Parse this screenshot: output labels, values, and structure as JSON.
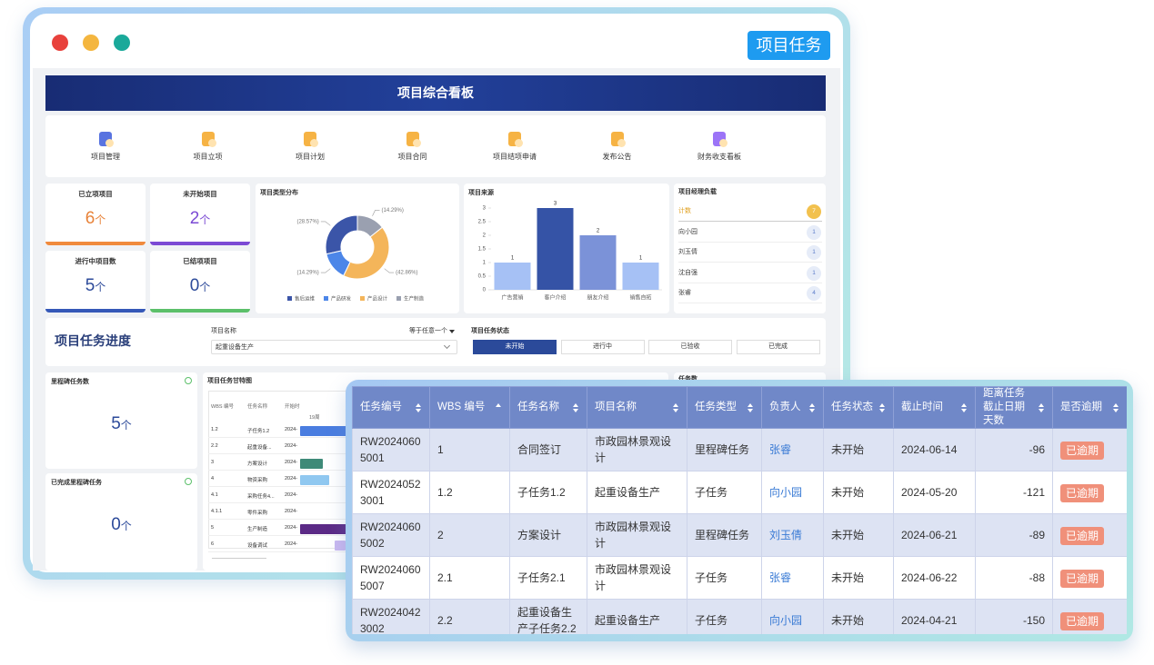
{
  "window": {
    "badge": "项目任务"
  },
  "dashboard": {
    "title": "项目综合看板",
    "nav": [
      "项目管理",
      "项目立项",
      "项目计划",
      "项目合同",
      "项目结项申请",
      "发布公告",
      "财务收支看板"
    ],
    "stats": [
      {
        "label": "已立项项目",
        "value": 6,
        "unit": "个"
      },
      {
        "label": "未开始项目",
        "value": 2,
        "unit": "个"
      },
      {
        "label": "进行中项目数",
        "value": 5,
        "unit": "个"
      },
      {
        "label": "已结项项目",
        "value": 0,
        "unit": "个"
      }
    ],
    "managers": {
      "title": "项目经理负载",
      "rows": [
        {
          "name": "计数",
          "count": 7
        },
        {
          "name": "向小园",
          "count": 1
        },
        {
          "name": "刘玉倩",
          "count": 1
        },
        {
          "name": "沈自强",
          "count": 1
        },
        {
          "name": "张睿",
          "count": 4
        }
      ]
    },
    "filter": {
      "title": "项目任务进度",
      "field_label": "项目名称",
      "operator": "等于任意一个",
      "field_value": "起重设备生产",
      "status_label": "项目任务状态",
      "status_options": [
        "未开始",
        "进行中",
        "已验收",
        "已完成"
      ]
    },
    "milestones": [
      {
        "label": "里程碑任务数",
        "value": 5,
        "unit": "个"
      },
      {
        "label": "已完成里程碑任务",
        "value": 0,
        "unit": "个"
      }
    ],
    "gantt": {
      "title": "项目任务甘特图",
      "columns": [
        "WBS 编号",
        "任务名称",
        "开始时"
      ],
      "week": "19周",
      "rows": [
        [
          "1.2",
          "子任务1.2",
          "2024-"
        ],
        [
          "2.2",
          "起重设备...",
          "2024-"
        ],
        [
          "3",
          "方案设计",
          "2024-"
        ],
        [
          "4",
          "物资采购",
          "2024-"
        ],
        [
          "4.1",
          "采购任务4...",
          "2024-"
        ],
        [
          "4.1.1",
          "零件采购",
          "2024-"
        ],
        [
          "5",
          "生产制造",
          "2024-"
        ],
        [
          "6",
          "设备调试",
          "2024-"
        ]
      ]
    },
    "task_count_title": "任务数"
  },
  "chart_data": [
    {
      "type": "pie",
      "title": "项目类型分布",
      "categories": [
        "售后运维",
        "产品研发",
        "产品设计",
        "生产制造"
      ],
      "values": [
        28.57,
        14.29,
        42.86,
        14.29
      ],
      "value_labels": [
        "(28.57%)",
        "(14.29%)",
        "(42.86%)",
        "(14.29%)"
      ],
      "colors": [
        "#3b55a8",
        "#4c86e8",
        "#f4b55a",
        "#9aa0b0"
      ]
    },
    {
      "type": "bar",
      "title": "项目来源",
      "categories": [
        "广告营销",
        "客户介绍",
        "朋友介绍",
        "销售自拓"
      ],
      "values": [
        1,
        3,
        2,
        1
      ],
      "colors": [
        "#a6c1f5",
        "#3553a6",
        "#7b92d8",
        "#a6c1f5"
      ],
      "ylim": [
        0,
        3
      ],
      "yticks": [
        0,
        0.5,
        1,
        1.5,
        2,
        2.5,
        3
      ]
    }
  ],
  "task_table": {
    "columns": [
      "任务编号",
      "WBS 编号",
      "任务名称",
      "项目名称",
      "任务类型",
      "负责人",
      "任务状态",
      "截止时间",
      "距离任务截止日期天数",
      "是否逾期"
    ],
    "rows": [
      [
        "RW20240605001",
        "1",
        "合同签订",
        "市政园林景观设计",
        "里程碑任务",
        "张睿",
        "未开始",
        "2024-06-14",
        -96,
        "已逾期"
      ],
      [
        "RW20240523001",
        "1.2",
        "子任务1.2",
        "起重设备生产",
        "子任务",
        "向小园",
        "未开始",
        "2024-05-20",
        -121,
        "已逾期"
      ],
      [
        "RW20240605002",
        "2",
        "方案设计",
        "市政园林景观设计",
        "里程碑任务",
        "刘玉倩",
        "未开始",
        "2024-06-21",
        -89,
        "已逾期"
      ],
      [
        "RW20240605007",
        "2.1",
        "子任务2.1",
        "市政园林景观设计",
        "子任务",
        "张睿",
        "未开始",
        "2024-06-22",
        -88,
        "已逾期"
      ],
      [
        "RW20240423002",
        "2.2",
        "起重设备生产子任务2.2",
        "起重设备生产",
        "子任务",
        "向小园",
        "未开始",
        "2024-04-21",
        -150,
        "已逾期"
      ]
    ]
  }
}
